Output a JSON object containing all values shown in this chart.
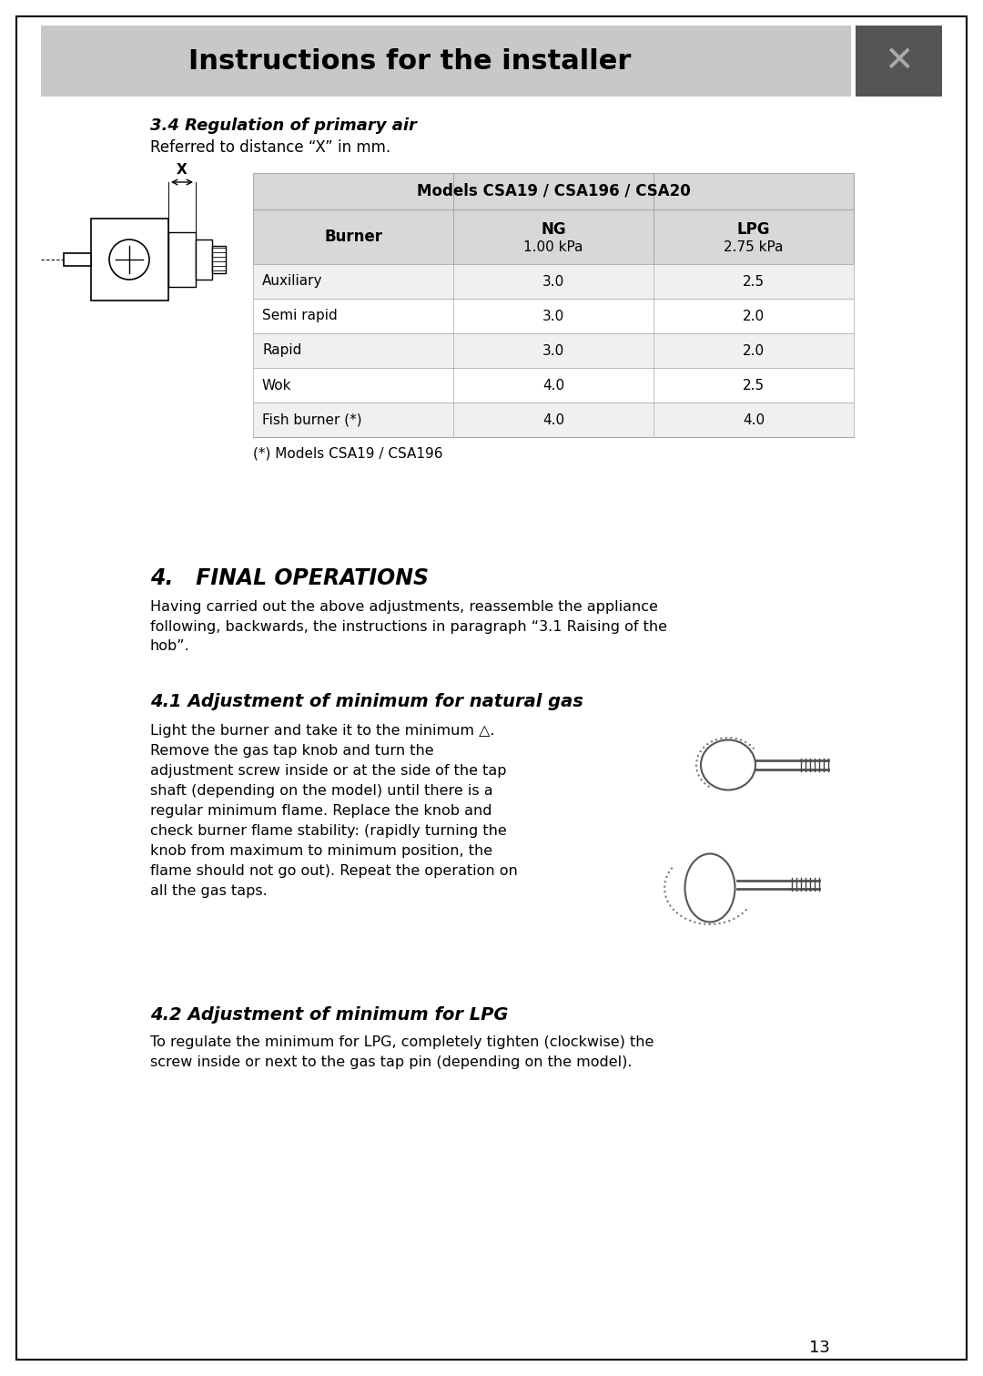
{
  "page_bg": "#ffffff",
  "header_bg": "#c8c8c8",
  "header_text": "Instructions for the installer",
  "header_text_color": "#000000",
  "header_icon_bg": "#555555",
  "section_3_4_title": "3.4 Regulation of primary air",
  "section_3_4_subtitle": "Referred to distance “X” in mm.",
  "table_header_bg": "#d8d8d8",
  "table_row_bg_odd": "#f0f0f0",
  "table_row_bg_even": "#ffffff",
  "table_models_header": "Models CSA19 / CSA196 / CSA20",
  "table_col1_header": "Burner",
  "table_col2_header": "NG",
  "table_col2_sub": "1.00 kPa",
  "table_col3_header": "LPG",
  "table_col3_sub": "2.75 kPa",
  "table_rows": [
    [
      "Auxiliary",
      "3.0",
      "2.5"
    ],
    [
      "Semi rapid",
      "3.0",
      "2.0"
    ],
    [
      "Rapid",
      "3.0",
      "2.0"
    ],
    [
      "Wok",
      "4.0",
      "2.5"
    ],
    [
      "Fish burner (*)",
      "4.0",
      "4.0"
    ]
  ],
  "table_footnote": "(*) Models CSA19 / CSA196",
  "section_4_title": "4.   FINAL OPERATIONS",
  "section_4_body": "Having carried out the above adjustments, reassemble the appliance\nfollowing, backwards, the instructions in paragraph “3.1 Raising of the\nhob”.",
  "section_4_1_title": "4.1 Adjustment of minimum for natural gas",
  "section_4_1_body": "Light the burner and take it to the minimum △.\nRemove the gas tap knob and turn the\nadjustment screw inside or at the side of the tap\nshaft (depending on the model) until there is a\nregular minimum flame. Replace the knob and\ncheck burner flame stability: (rapidly turning the\nknob from maximum to minimum position, the\nflame should not go out). Repeat the operation on\nall the gas taps.",
  "section_4_2_title": "4.2 Adjustment of minimum for LPG",
  "section_4_2_body": "To regulate the minimum for LPG, completely tighten (clockwise) the\nscrew inside or next to the gas tap pin (depending on the model).",
  "page_number": "13",
  "border_color": "#000000",
  "text_color": "#000000",
  "table_border_color": "#aaaaaa"
}
